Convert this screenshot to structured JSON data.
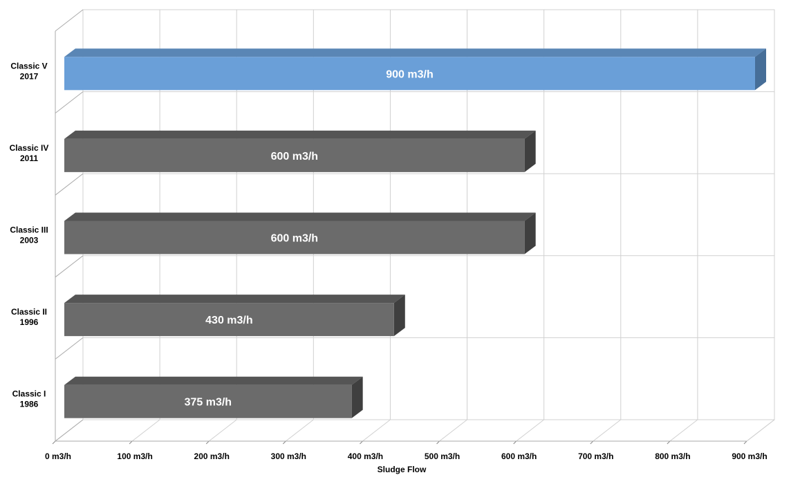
{
  "chart_data": {
    "type": "bar",
    "orientation": "horizontal",
    "style": "3d",
    "title": "",
    "xlabel": "Sludge Flow",
    "ylabel": "",
    "xlim": [
      0,
      900
    ],
    "grid": true,
    "legend": "none",
    "x_ticks": [
      "0 m3/h",
      "100 m3/h",
      "200 m3/h",
      "300 m3/h",
      "400 m3/h",
      "500 m3/h",
      "600 m3/h",
      "700 m3/h",
      "800 m3/h",
      "900 m3/h"
    ],
    "categories": [
      {
        "line1": "Classic V",
        "line2": "2017"
      },
      {
        "line1": "Classic IV",
        "line2": "2011"
      },
      {
        "line1": "Classic III",
        "line2": "2003"
      },
      {
        "line1": "Classic II",
        "line2": "1996"
      },
      {
        "line1": "Classic I",
        "line2": "1986"
      }
    ],
    "values": [
      900,
      600,
      600,
      430,
      375
    ],
    "data_labels": [
      "900 m3/h",
      "600 m3/h",
      "600 m3/h",
      "430 m3/h",
      "375 m3/h"
    ],
    "highlight_index": 0,
    "colors": {
      "highlight_front": "#6a9fd8",
      "highlight_top": "#5a86b5",
      "highlight_side": "#466e98",
      "bar_front": "#6b6b6b",
      "bar_top": "#555555",
      "bar_side": "#3f3f3f",
      "grid": "#d0d0d0"
    }
  }
}
